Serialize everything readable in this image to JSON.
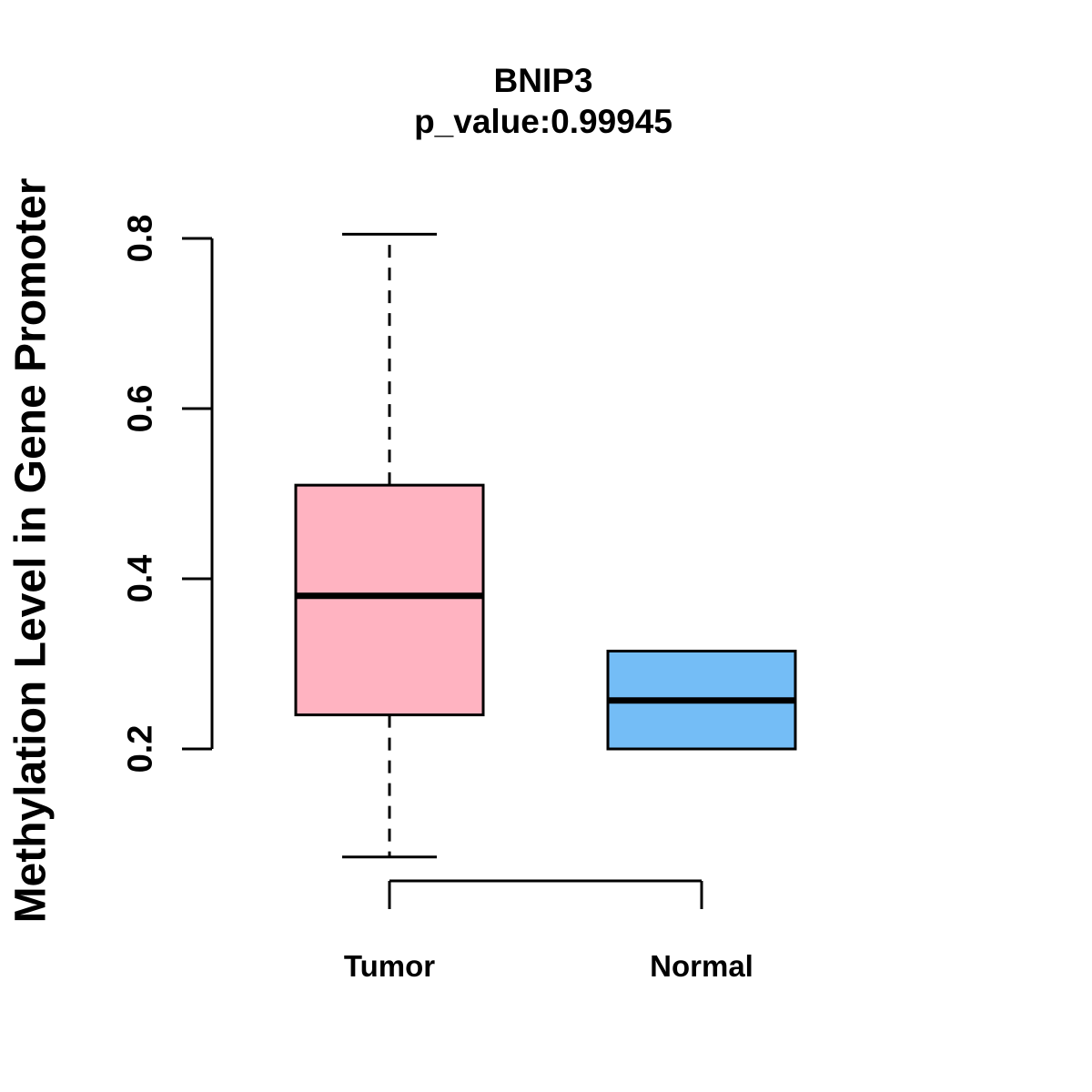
{
  "figure": {
    "background": "#ffffff",
    "line_color": "#000000"
  },
  "chart_data": {
    "type": "boxplot",
    "title": "BNIP3",
    "subtitle": "p_value:0.99945",
    "ylabel": "Methylation Level in Gene Promoter",
    "xlabel": "",
    "y_ticks": [
      "0.2",
      "0.4",
      "0.6",
      "0.8"
    ],
    "ylim": [
      0.07,
      0.81
    ],
    "grid": false,
    "legend": "none",
    "whisker_style": "dashed",
    "groups": [
      {
        "label": "Tumor",
        "color": "#FFB3C1",
        "whisker_low": 0.073,
        "q1": 0.24,
        "median": 0.38,
        "q3": 0.51,
        "whisker_high": 0.805
      },
      {
        "label": "Normal",
        "color": "#74BDF6",
        "whisker_low": 0.2,
        "q1": 0.2,
        "median": 0.257,
        "q3": 0.315,
        "whisker_high": 0.315
      }
    ]
  }
}
